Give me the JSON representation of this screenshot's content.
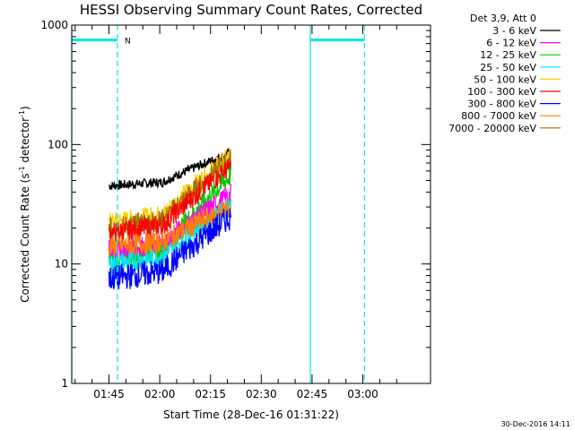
{
  "chart_data": {
    "type": "line",
    "title": "HESSI Observing Summary Count Rates, Corrected",
    "xlabel": "Start Time (28-Dec-16 01:31:22)",
    "ylabel_main": "Corrected Count Rate (s",
    "ylabel_sup1": "-1",
    "ylabel_mid": " detector",
    "ylabel_sup2": "-1",
    "ylabel_end": ")",
    "y_scale": "log",
    "ylim": [
      1,
      1000
    ],
    "y_ticks": [
      {
        "value": 1,
        "label": "1"
      },
      {
        "value": 10,
        "label": "10"
      },
      {
        "value": 100,
        "label": "100"
      },
      {
        "value": 1000,
        "label": "1000"
      }
    ],
    "xlim_minutes": [
      94,
      200
    ],
    "x_ticks": [
      {
        "value": 105,
        "label": "01:45"
      },
      {
        "value": 120,
        "label": "02:00"
      },
      {
        "value": 135,
        "label": "02:15"
      },
      {
        "value": 150,
        "label": "02:30"
      },
      {
        "value": 165,
        "label": "02:45"
      },
      {
        "value": 180,
        "label": "03:00"
      }
    ],
    "legend_title": "Det 3,9, Att 0",
    "legend_placement": "right, outside plot",
    "series": [
      {
        "name": "3 - 6 keV",
        "color": "#000000",
        "start": 45,
        "end": 85
      },
      {
        "name": "6 - 12 keV",
        "color": "#ff00ff",
        "start": 13,
        "end": 38
      },
      {
        "name": "12 - 25 keV",
        "color": "#00cc00",
        "start": 11,
        "end": 55
      },
      {
        "name": "25 - 50 keV",
        "color": "#00e5e5",
        "start": 10,
        "end": 32
      },
      {
        "name": "50 - 100 keV",
        "color": "#ffcc00",
        "start": 22,
        "end": 80
      },
      {
        "name": "100 - 300 keV",
        "color": "#ff0000",
        "start": 18,
        "end": 65
      },
      {
        "name": "300 - 800 keV",
        "color": "#0000ff",
        "start": 7.5,
        "end": 25
      },
      {
        "name": "800 - 7000 keV",
        "color": "#ff8000",
        "start": 14,
        "end": 30
      },
      {
        "name": "7000 - 20000 keV",
        "color": "#a07000",
        "start": 20,
        "end": 75
      }
    ],
    "series_x_range_minutes": [
      105,
      141
    ],
    "attenuator_bars": [
      {
        "from": 94,
        "to": 107.5,
        "value": 750,
        "label": "N"
      },
      {
        "from": 164.5,
        "to": 180.5,
        "value": 750,
        "label": ""
      }
    ],
    "vertical_solid_lines": [
      94,
      164.5
    ],
    "vertical_dashed_lines": [
      107.5,
      180.5
    ],
    "timestamp": "30-Dec-2016 14:11"
  }
}
